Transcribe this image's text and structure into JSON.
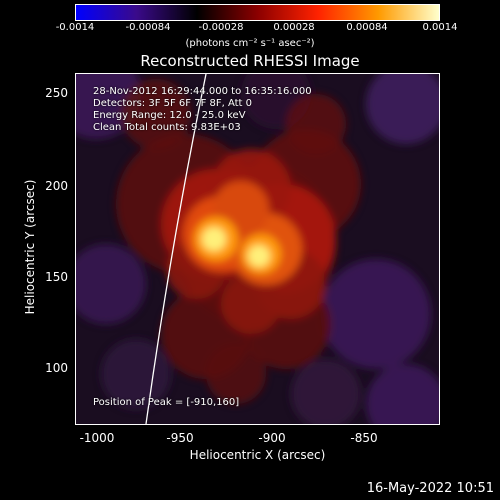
{
  "colorbar": {
    "ticks": [
      "-0.0014",
      "-0.00084",
      "-0.00028",
      "0.00028",
      "0.00084",
      "0.0014"
    ],
    "units_label": "(photons cm⁻² s⁻¹ asec⁻²)",
    "colors": [
      "#0000ff",
      "#3a0a8a",
      "#000000",
      "#8b0000",
      "#ff2200",
      "#ff9a00",
      "#ffffcc"
    ]
  },
  "title": "Reconstructed RHESSI Image",
  "info": {
    "time_range": "28-Nov-2012 16:29:44.000 to 16:35:16.000",
    "detectors": "Detectors: 3F 5F 6F 7F 8F, Att 0",
    "energy": "Energy Range: 12.0 - 25.0 keV",
    "clean": "Clean    Total counts: 9.83E+03",
    "peak": "Position of Peak = [-910,160]"
  },
  "axes": {
    "xlabel": "Heliocentric X (arcsec)",
    "ylabel": "Heliocentric Y (arcsec)",
    "xticks": [
      "-1000",
      "-950",
      "-900",
      "-850"
    ],
    "yticks": [
      "250",
      "200",
      "150",
      "100"
    ]
  },
  "timestamp": "16-May-2022 10:51"
}
